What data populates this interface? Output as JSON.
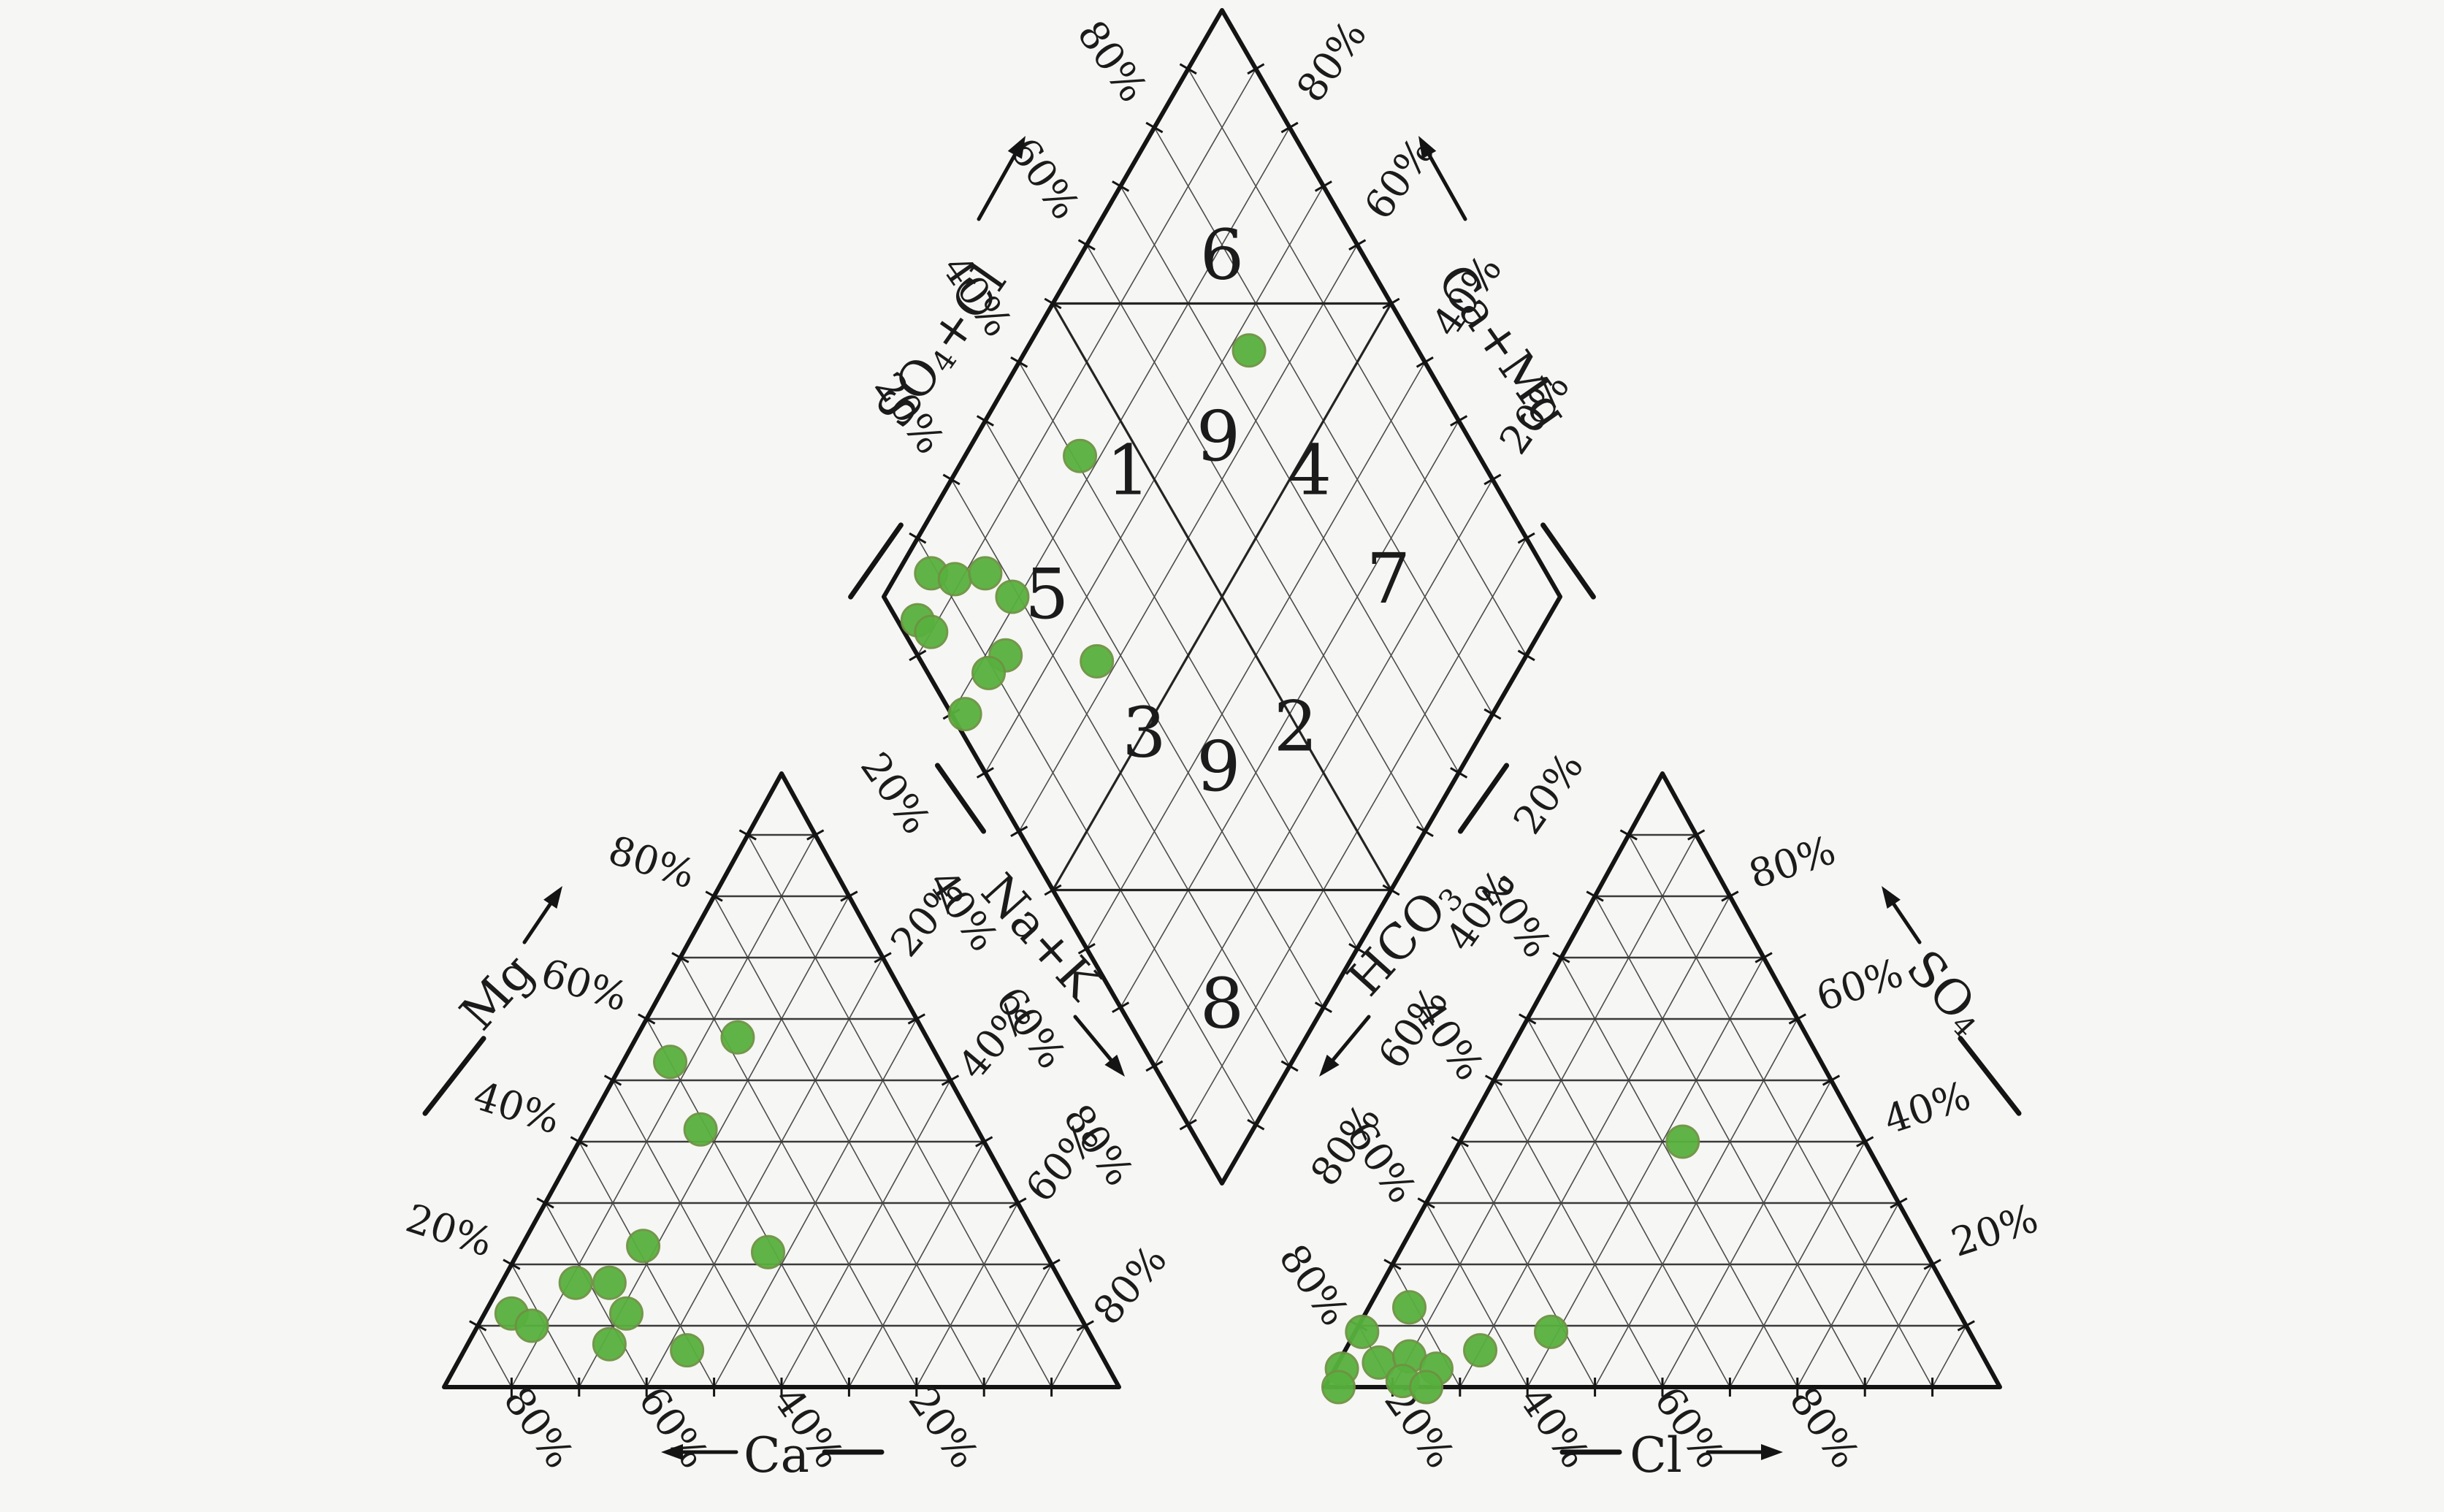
{
  "figure": {
    "background": "#f6f6f4",
    "line_color": "#141414",
    "grid_color": "#4c4c4c"
  },
  "chart_data": {
    "type": "scatter",
    "subtype": "piper-trilinear",
    "grid_step_pct": 10,
    "subdivision_pct": 50,
    "marker": {
      "shape": "circle",
      "color": "#58b13e",
      "edge_color": "#6e9243",
      "radius": 22
    },
    "cation_triangle": {
      "bottom_axis": {
        "label": "Ca",
        "arrow": "left",
        "ticks": [
          "80%",
          "60%",
          "40%",
          "20%"
        ]
      },
      "left_axis": {
        "label": "Mg",
        "arrow": "up-right",
        "ticks": [
          "20%",
          "40%",
          "60%",
          "80%"
        ]
      },
      "right_axis": {
        "label": "Na+K",
        "arrow": "down-right",
        "ticks": [
          "20%",
          "40%",
          "60%",
          "80%"
        ]
      },
      "points": [
        {
          "Ca": 28,
          "Mg": 57,
          "NaK": 15
        },
        {
          "Ca": 40,
          "Mg": 53,
          "NaK": 7
        },
        {
          "Ca": 41,
          "Mg": 42,
          "NaK": 17
        },
        {
          "Ca": 59,
          "Mg": 23,
          "NaK": 18
        },
        {
          "Ca": 41,
          "Mg": 22,
          "NaK": 37
        },
        {
          "Ca": 72,
          "Mg": 17,
          "NaK": 11
        },
        {
          "Ca": 67,
          "Mg": 17,
          "NaK": 16
        },
        {
          "Ca": 84,
          "Mg": 12,
          "NaK": 4
        },
        {
          "Ca": 82,
          "Mg": 10,
          "NaK": 8
        },
        {
          "Ca": 67,
          "Mg": 12,
          "NaK": 21
        },
        {
          "Ca": 72,
          "Mg": 7,
          "NaK": 21
        },
        {
          "Ca": 61,
          "Mg": 6,
          "NaK": 33
        }
      ]
    },
    "anion_triangle": {
      "bottom_axis": {
        "label": "Cl",
        "arrow": "right",
        "ticks": [
          "20%",
          "40%",
          "60%",
          "80%"
        ]
      },
      "left_axis": {
        "label": "HCO₃",
        "arrow": "down-left",
        "ticks": [
          "20%",
          "40%",
          "60%",
          "80%"
        ]
      },
      "right_axis": {
        "label": "SO₄",
        "arrow": "up-left",
        "ticks": [
          "20%",
          "40%",
          "60%",
          "80%"
        ]
      },
      "points": [
        {
          "Cl": 33,
          "SO4": 40,
          "HCO3": 27
        },
        {
          "Cl": 6,
          "SO4": 13,
          "HCO3": 81
        },
        {
          "Cl": 29,
          "SO4": 9,
          "HCO3": 62
        },
        {
          "Cl": 20,
          "SO4": 6,
          "HCO3": 74
        },
        {
          "Cl": 1,
          "SO4": 9,
          "HCO3": 90
        },
        {
          "Cl": 1,
          "SO4": 3,
          "HCO3": 96
        },
        {
          "Cl": 6,
          "SO4": 4,
          "HCO3": 90
        },
        {
          "Cl": 10,
          "SO4": 5,
          "HCO3": 85
        },
        {
          "Cl": 15,
          "SO4": 3,
          "HCO3": 82
        },
        {
          "Cl": 11,
          "SO4": 1,
          "HCO3": 88
        },
        {
          "Cl": 15,
          "SO4": 0,
          "HCO3": 85
        },
        {
          "Cl": 2,
          "SO4": 0,
          "HCO3": 98
        }
      ]
    },
    "diamond": {
      "upper_left_axis": {
        "label": "SO₄+Cl",
        "ticks": [
          "20%",
          "40%",
          "60%",
          "80%"
        ]
      },
      "upper_right_axis": {
        "label": "Ca+Mg",
        "ticks": [
          "20%",
          "40%",
          "60%",
          "80%"
        ]
      },
      "lower_left_axis": {
        "label": "Na+K",
        "ticks": [
          "20%",
          "40%",
          "60%",
          "80%"
        ]
      },
      "lower_right_axis": {
        "label": "HCO₃",
        "ticks": [
          "20%",
          "40%",
          "60%",
          "80%"
        ]
      },
      "zone_labels": [
        {
          "text": "6",
          "CaMg": 79.1,
          "SO4Cl": 79.1
        },
        {
          "text": "9",
          "CaMg": 64.2,
          "SO4Cl": 63.1
        },
        {
          "text": "9",
          "CaMg": 36.0,
          "SO4Cl": 35.0
        },
        {
          "text": "1",
          "CaMg": 74.6,
          "SO4Cl": 46.9
        },
        {
          "text": "4",
          "CaMg": 47.8,
          "SO4Cl": 73.7
        },
        {
          "text": "3",
          "CaMg": 49.9,
          "SO4Cl": 26.9
        },
        {
          "text": "2",
          "CaMg": 28.0,
          "SO4Cl": 49.8
        },
        {
          "text": "5",
          "CaMg": 76.1,
          "SO4Cl": 24.3
        },
        {
          "text": "7",
          "CaMg": 26.9,
          "SO4Cl": 76.1
        },
        {
          "text": "8",
          "CaMg": 15.3,
          "SO4Cl": 15.3
        }
      ],
      "points": [
        {
          "CaMg": 95,
          "SO4Cl": 9
        },
        {
          "CaMg": 91,
          "SO4Cl": 12
        },
        {
          "CaMg": 87,
          "SO4Cl": 17
        },
        {
          "CaMg": 81,
          "SO4Cl": 19
        },
        {
          "CaMg": 93,
          "SO4Cl": 3
        },
        {
          "CaMg": 90,
          "SO4Cl": 4
        },
        {
          "CaMg": 77,
          "SO4Cl": 13
        },
        {
          "CaMg": 78,
          "SO4Cl": 9
        },
        {
          "CaMg": 78,
          "SO4Cl": 2
        },
        {
          "CaMg": 63,
          "SO4Cl": 26
        },
        {
          "CaMg": 83,
          "SO4Cl": 41
        },
        {
          "CaMg": 67,
          "SO4Cl": 75
        }
      ]
    }
  }
}
